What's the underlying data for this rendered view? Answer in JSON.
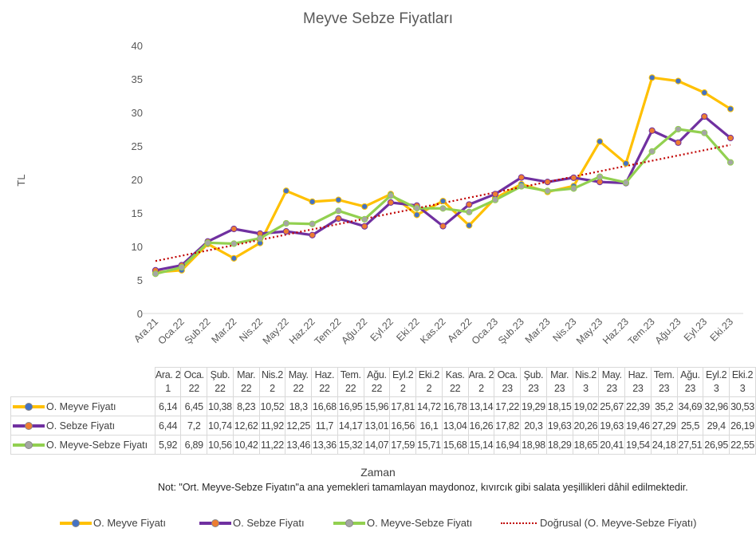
{
  "chart_data": {
    "type": "line",
    "title": "Meyve Sebze Fiyatları",
    "xlabel": "Zaman",
    "ylabel": "TL",
    "ylim": [
      0,
      40
    ],
    "yticks": [
      "0",
      "5",
      "10",
      "15",
      "20",
      "25",
      "30",
      "35",
      "40"
    ],
    "categories": [
      "Ara.21",
      "Oca.22",
      "Şub.22",
      "Mar.22",
      "Nis.22",
      "May.22",
      "Haz.22",
      "Tem.22",
      "Ağu.22",
      "Eyl.22",
      "Eki.22",
      "Kas.22",
      "Ara.22",
      "Oca.23",
      "Şub.23",
      "Mar.23",
      "Nis.23",
      "May.23",
      "Haz.23",
      "Tem.23",
      "Ağu.23",
      "Eyl.23",
      "Eki.23"
    ],
    "series": [
      {
        "name": "O. Meyve Fiyatı",
        "color": "#FFC000",
        "marker": "#4472C4",
        "values": [
          6.14,
          6.45,
          10.38,
          8.23,
          10.52,
          18.3,
          16.68,
          16.95,
          15.96,
          17.81,
          14.72,
          16.78,
          13.14,
          17.22,
          19.29,
          18.15,
          19.02,
          25.67,
          22.39,
          35.2,
          34.69,
          32.96,
          30.53
        ],
        "labels": [
          "6,14",
          "6,45",
          "10,38",
          "8,23",
          "10,52",
          "18,3",
          "16,68",
          "16,95",
          "15,96",
          "17,81",
          "14,72",
          "16,78",
          "13,14",
          "17,22",
          "19,29",
          "18,15",
          "19,02",
          "25,67",
          "22,39",
          "35,2",
          "34,69",
          "32,96",
          "30,53"
        ]
      },
      {
        "name": "O. Sebze Fiyatı",
        "color": "#7030A0",
        "marker": "#ED7D31",
        "values": [
          6.44,
          7.2,
          10.74,
          12.62,
          11.92,
          12.25,
          11.7,
          14.17,
          13.01,
          16.56,
          16.1,
          13.04,
          16.26,
          17.82,
          20.3,
          19.63,
          20.26,
          19.63,
          19.46,
          27.29,
          25.5,
          29.4,
          26.19
        ],
        "labels": [
          "6,44",
          "7,2",
          "10,74",
          "12,62",
          "11,92",
          "12,25",
          "11,7",
          "14,17",
          "13,01",
          "16,56",
          "16,1",
          "13,04",
          "16,26",
          "17,82",
          "20,3",
          "19,63",
          "20,26",
          "19,63",
          "19,46",
          "27,29",
          "25,5",
          "29,4",
          "26,19"
        ]
      },
      {
        "name": "O. Meyve-Sebze Fiyatı",
        "color": "#92D050",
        "marker": "#A5A5A5",
        "values": [
          5.92,
          6.89,
          10.56,
          10.42,
          11.22,
          13.46,
          13.36,
          15.32,
          14.07,
          17.59,
          15.71,
          15.68,
          15.14,
          16.94,
          18.98,
          18.29,
          18.65,
          20.41,
          19.54,
          24.18,
          27.51,
          26.95,
          22.55
        ],
        "labels": [
          "5,92",
          "6,89",
          "10,56",
          "10,42",
          "11,22",
          "13,46",
          "13,36",
          "15,32",
          "14,07",
          "17,59",
          "15,71",
          "15,68",
          "15,14",
          "16,94",
          "18,98",
          "18,29",
          "18,65",
          "20,41",
          "19,54",
          "24,18",
          "27,51",
          "26,95",
          "22,55"
        ]
      }
    ],
    "trendline": {
      "name": "Doğrusal (O. Meyve-Sebze Fiyatı)",
      "color": "#C00000",
      "of_series": 2,
      "type": "linear"
    },
    "table_headers": [
      "Ara. 21",
      "Oca. 22",
      "Şub. 22",
      "Mar. 22",
      "Nis.2 2",
      "May. 22",
      "Haz. 22",
      "Tem. 22",
      "Ağu. 22",
      "Eyl.2 2",
      "Eki.2 2",
      "Kas. 22",
      "Ara. 22",
      "Oca. 23",
      "Şub. 23",
      "Mar. 23",
      "Nis.2 3",
      "May. 23",
      "Haz. 23",
      "Tem. 23",
      "Ağu. 23",
      "Eyl.2 3",
      "Eki.2 3"
    ],
    "legend_position": "bottom",
    "grid": false
  },
  "note": "Not: \"Ort. Meyve-Sebze Fiyatın\"a ana yemekleri tamamlayan maydonoz, kıvırcık gibi salata yeşillikleri dâhil edilmektedir."
}
